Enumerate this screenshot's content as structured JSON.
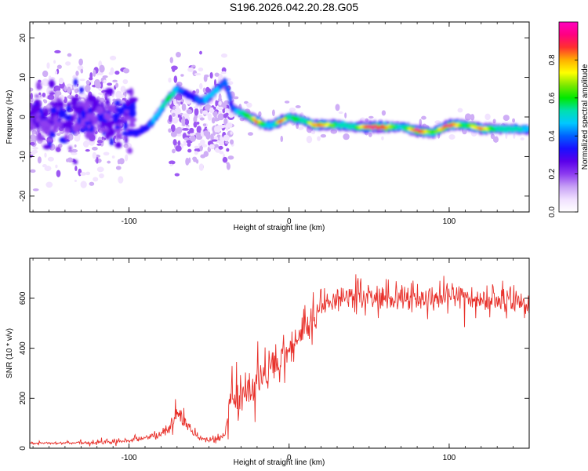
{
  "figure": {
    "title": "S196.2026.042.20.28.G05"
  },
  "chart_data": [
    {
      "type": "heatmap",
      "title": "S196.2026.042.20.28.G05",
      "xlabel": "Height of straight line (km)",
      "ylabel": "Frequency (Hz)",
      "xlim": [
        -162,
        150
      ],
      "ylim": [
        -24,
        24
      ],
      "xticks": [
        -100,
        0,
        100
      ],
      "yticks": [
        -20,
        -10,
        0,
        10,
        20
      ],
      "x_tick_labels": [
        "-100",
        "0",
        "100"
      ],
      "y_tick_labels": [
        "-20",
        "-10",
        "0",
        "10",
        "20"
      ],
      "colorbar": {
        "label": "Normalized spectral amplitude",
        "range": [
          0,
          1
        ],
        "ticks": [
          0,
          0.2,
          0.4,
          0.6,
          0.8
        ],
        "tick_labels": [
          "0.0",
          "0.2",
          "0.4",
          "0.6",
          "0.8"
        ],
        "colors": [
          "#ffffff",
          "#f0e0ff",
          "#c7a0f5",
          "#8d3cf0",
          "#5a00ea",
          "#1a10ff",
          "#0060ff",
          "#00c8ff",
          "#00e0b0",
          "#00e800",
          "#7de800",
          "#ffff00",
          "#ffb000",
          "#ff3030",
          "#ff0080",
          "#ff00c0"
        ]
      },
      "ridge": {
        "description": "dominant frequency track vs height",
        "x": [
          -100,
          -95,
          -90,
          -85,
          -80,
          -75,
          -70,
          -65,
          -60,
          -55,
          -50,
          -45,
          -40,
          -35,
          -30,
          -25,
          -20,
          -15,
          -10,
          -5,
          0,
          5,
          10,
          15,
          20,
          30,
          40,
          50,
          60,
          70,
          80,
          90,
          100,
          110,
          120,
          130,
          140,
          150
        ],
        "freq": [
          -4,
          -4,
          -3,
          -1,
          2,
          5,
          7,
          6,
          5,
          4,
          5,
          7,
          9,
          2,
          1,
          0,
          -1,
          -2,
          -2,
          -1,
          0,
          -0.5,
          -1,
          -2,
          -2,
          -2,
          -2.5,
          -2.5,
          -2.5,
          -2.5,
          -3.5,
          -4,
          -2,
          -2,
          -3,
          -3,
          -3,
          -3.2
        ],
        "amplitude": [
          0.3,
          0.35,
          0.3,
          0.45,
          0.5,
          0.6,
          0.45,
          0.35,
          0.35,
          0.4,
          0.5,
          0.45,
          0.4,
          0.35,
          0.55,
          0.6,
          0.85,
          0.5,
          0.45,
          0.9,
          0.55,
          0.6,
          0.5,
          0.8,
          0.85,
          0.55,
          0.5,
          0.95,
          0.85,
          0.45,
          0.95,
          0.6,
          0.95,
          0.55,
          0.85,
          0.5,
          0.55,
          0.45
        ]
      }
    },
    {
      "type": "line",
      "xlabel": "Height of straight line (km)",
      "ylabel": "SNR (10 * v/v)",
      "xlim": [
        -162,
        150
      ],
      "ylim": [
        0,
        760
      ],
      "xticks": [
        -100,
        0,
        100
      ],
      "yticks": [
        0,
        200,
        400,
        600
      ],
      "x_tick_labels": [
        "-100",
        "0",
        "100"
      ],
      "y_tick_labels": [
        "0",
        "200",
        "400",
        "600"
      ],
      "color": "#e8302a",
      "series": [
        {
          "name": "SNR",
          "envelope_x": [
            -162,
            -130,
            -110,
            -100,
            -90,
            -80,
            -75,
            -70,
            -65,
            -60,
            -55,
            -50,
            -45,
            -40,
            -38,
            -35,
            -30,
            -25,
            -20,
            -15,
            -10,
            -5,
            0,
            5,
            10,
            15,
            20,
            25,
            30,
            35,
            40,
            50,
            60,
            70,
            80,
            90,
            100,
            110,
            120,
            130,
            140,
            150
          ],
          "envelope_y": [
            20,
            22,
            25,
            30,
            40,
            55,
            80,
            120,
            110,
            60,
            40,
            35,
            40,
            50,
            150,
            200,
            230,
            240,
            260,
            290,
            320,
            350,
            390,
            430,
            470,
            520,
            560,
            580,
            590,
            600,
            610,
            600,
            590,
            600,
            600,
            590,
            600,
            600,
            590,
            595,
            590,
            580
          ],
          "noise_amplitude": [
            5,
            8,
            10,
            12,
            12,
            20,
            30,
            50,
            45,
            25,
            15,
            12,
            15,
            20,
            60,
            90,
            100,
            100,
            90,
            80,
            75,
            75,
            75,
            70,
            70,
            65,
            60,
            55,
            50,
            50,
            50,
            55,
            55,
            60,
            60,
            55,
            60,
            55,
            55,
            55,
            55,
            50
          ]
        }
      ]
    }
  ]
}
